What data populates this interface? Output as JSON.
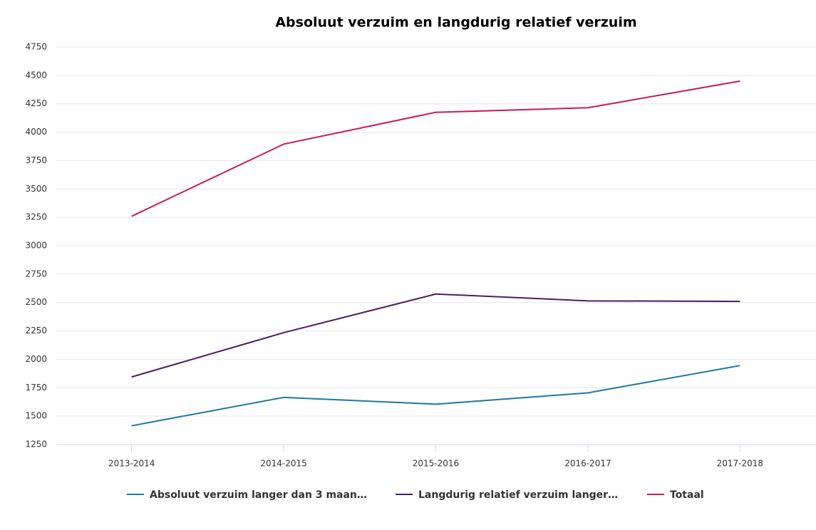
{
  "chart_data": {
    "type": "line",
    "title": "Absoluut verzuim en langdurig relatief verzuim",
    "categories": [
      "2013-2014",
      "2014-2015",
      "2015-2016",
      "2016-2017",
      "2017-2018"
    ],
    "series": [
      {
        "name": "Absoluut verzuim langer dan 3 maan…",
        "color": "#1f77a6",
        "values": [
          1415,
          1665,
          1605,
          1705,
          1945
        ]
      },
      {
        "name": "Langdurig relatief verzuim langer…",
        "color": "#4b1f63",
        "values": [
          1845,
          2235,
          2575,
          2515,
          2510
        ]
      },
      {
        "name": "Totaal",
        "color": "#c8185f",
        "values": [
          3260,
          3895,
          4175,
          4215,
          4450
        ]
      }
    ],
    "ylim": [
      1250,
      4750
    ],
    "yticks": [
      1250,
      1500,
      1750,
      2000,
      2250,
      2500,
      2750,
      3000,
      3250,
      3500,
      3750,
      4000,
      4250,
      4500,
      4750
    ],
    "grid": true,
    "legend": "bottom"
  }
}
